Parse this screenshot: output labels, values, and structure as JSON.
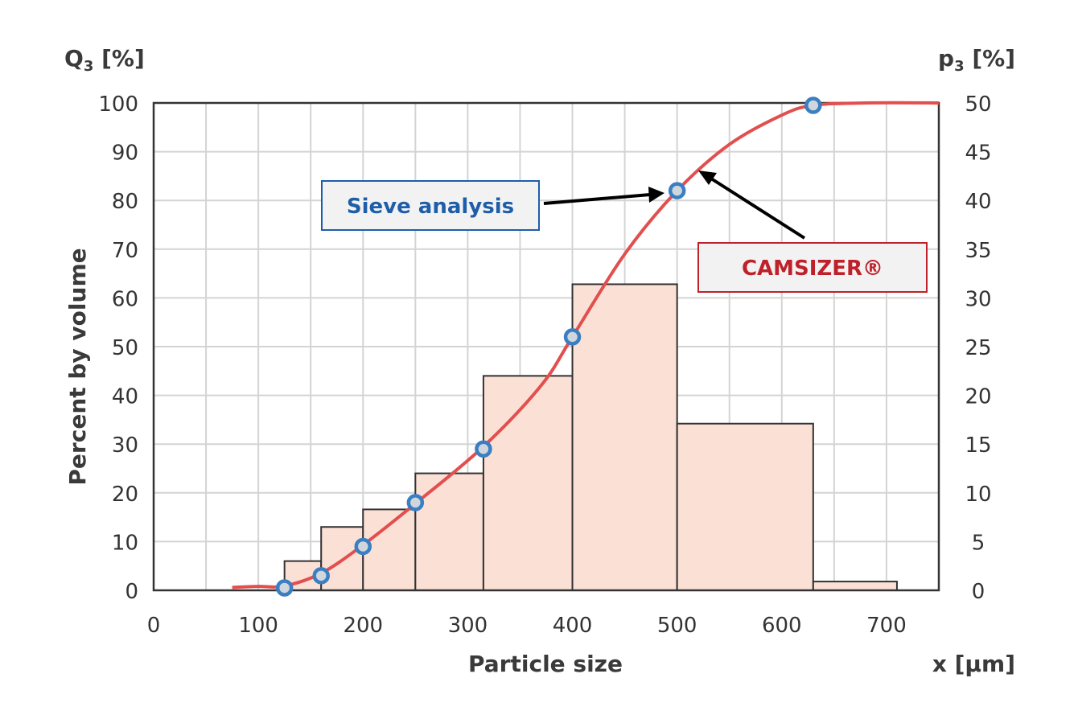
{
  "chart_data": {
    "type": "bar",
    "xlabel": "Particle size",
    "xunit": "x [µm]",
    "ylabel": "Percent by volume",
    "y_left_label": "Q3 [%]",
    "y_right_label": "p3 [%]",
    "xlim": [
      0,
      750
    ],
    "ylim_left": [
      0,
      100
    ],
    "ylim_right": [
      0,
      50
    ],
    "x_ticks": [
      0,
      100,
      200,
      300,
      400,
      500,
      600,
      700
    ],
    "y_left_ticks": [
      0,
      10,
      20,
      30,
      40,
      50,
      60,
      70,
      80,
      90,
      100
    ],
    "y_right_ticks": [
      0,
      5,
      10,
      15,
      20,
      25,
      30,
      35,
      40,
      45,
      50
    ],
    "grid": true,
    "colors": {
      "bar_fill": "#fbe0d6",
      "bar_stroke": "#333333",
      "curve": "#e24f4f",
      "points_stroke": "#3a7fc1",
      "points_fill": "#cfd6dd",
      "sieve": "#1e5ea8",
      "camsizer": "#c0202a",
      "grid": "#d4d4d4"
    },
    "histogram_p3": [
      {
        "x0": 125,
        "x1": 160,
        "p3": 3
      },
      {
        "x0": 160,
        "x1": 200,
        "p3": 6.5
      },
      {
        "x0": 200,
        "x1": 250,
        "p3": 8.3
      },
      {
        "x0": 250,
        "x1": 315,
        "p3": 12
      },
      {
        "x0": 315,
        "x1": 400,
        "p3": 22
      },
      {
        "x0": 400,
        "x1": 500,
        "p3": 31.4
      },
      {
        "x0": 500,
        "x1": 630,
        "p3": 17.1
      },
      {
        "x0": 630,
        "x1": 710,
        "p3": 0.9
      }
    ],
    "series": [
      {
        "name": "CAMSIZER®",
        "type": "line",
        "x": [
          75,
          100,
          125,
          160,
          200,
          250,
          315,
          370,
          400,
          450,
          500,
          550,
          600,
          630,
          680,
          750
        ],
        "y": [
          0.6,
          0.8,
          0.9,
          3.5,
          9.3,
          17.8,
          29.5,
          42,
          52,
          69,
          82,
          91.5,
          97.5,
          99.5,
          100,
          100
        ]
      },
      {
        "name": "Sieve analysis",
        "type": "scatter",
        "x": [
          125,
          160,
          200,
          250,
          315,
          400,
          500,
          630
        ],
        "y": [
          0.5,
          3,
          9,
          18,
          29,
          52,
          82,
          99.5
        ]
      }
    ],
    "annotations": {
      "sieve_label": "Sieve analysis",
      "camsizer_label": "CAMSIZER®"
    }
  }
}
